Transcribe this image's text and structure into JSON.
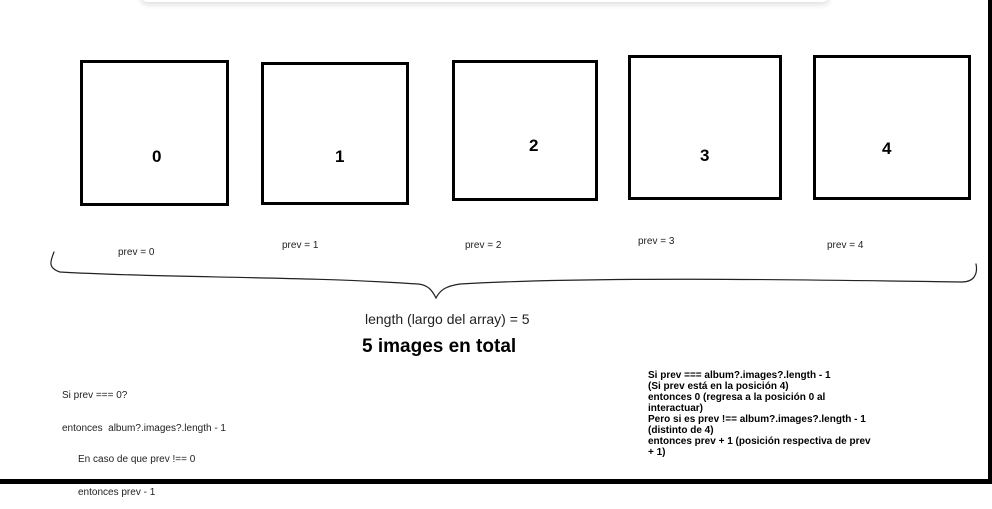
{
  "boxes": [
    "0",
    "1",
    "2",
    "3",
    "4"
  ],
  "prev_labels": [
    "prev = 0",
    "prev = 1",
    "prev = 2",
    "prev = 3",
    "prev = 4"
  ],
  "length_label": "length (largo del array) = 5",
  "total_label": "5 images en total",
  "note_first": {
    "line1": "Si prev === 0?",
    "line2": "entonces  album?.images?.length - 1"
  },
  "note_else": {
    "line1": "En caso de que prev !== 0",
    "line2": "entonces prev - 1"
  },
  "note_last": [
    "Si prev === album?.images?.length - 1",
    "(Si prev está en la posición 4)",
    "entonces 0 (regresa a la posición 0 al",
    "interactuar)",
    "Pero si es prev !== album?.images?.length - 1",
    "(distinto de 4)",
    "entonces prev + 1 (posición respectiva de prev",
    "+ 1)"
  ]
}
